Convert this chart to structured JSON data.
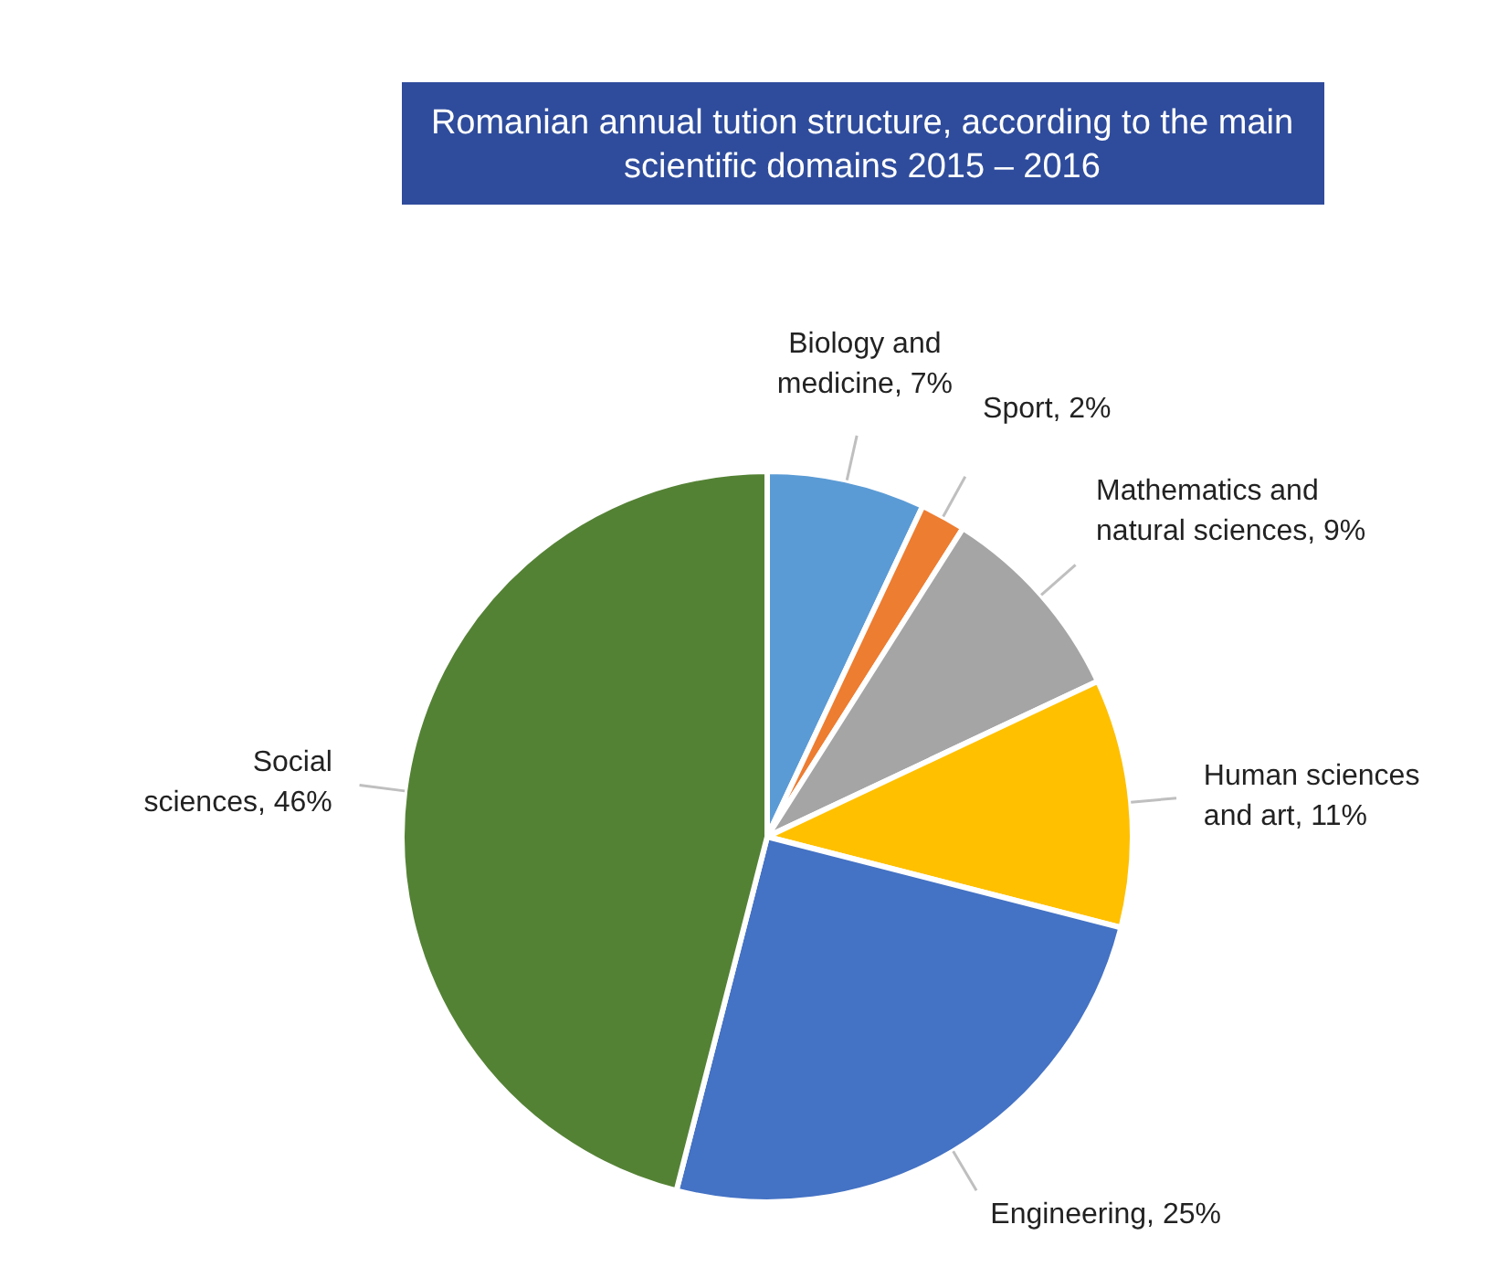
{
  "chart_data": {
    "type": "pie",
    "title": "Romanian annual tution structure, according to the main scientific domains 2015 – 2016",
    "categories": [
      "Biology and medicine",
      "Sport",
      "Mathematics and natural sciences",
      "Human sciences and art",
      "Engineering",
      "Social sciences"
    ],
    "values": [
      7,
      2,
      9,
      11,
      25,
      46
    ],
    "value_labels": [
      "7%",
      "2%",
      "9%",
      "11%",
      "25%",
      "46%"
    ],
    "colors": [
      "#5b9bd5",
      "#ed7d31",
      "#a5a5a5",
      "#ffc000",
      "#4472c4",
      "#548235"
    ]
  }
}
